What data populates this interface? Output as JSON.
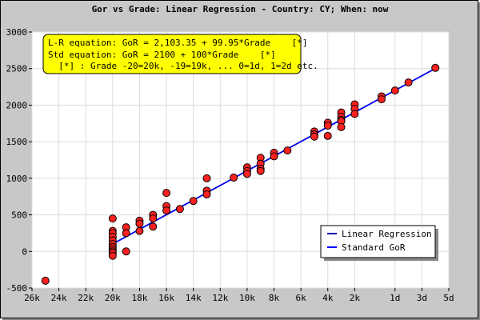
{
  "chart_data": {
    "type": "scatter",
    "title": "Gor vs Grade: Linear Regression - Country: CY; When: now",
    "xlabel": "",
    "ylabel": "",
    "xlim": [
      -26,
      5
    ],
    "ylim": [
      -500,
      3000
    ],
    "x_ticks": [
      {
        "value": -26,
        "label": "26k"
      },
      {
        "value": -24,
        "label": "24k"
      },
      {
        "value": -22,
        "label": "22k"
      },
      {
        "value": -20,
        "label": "20k"
      },
      {
        "value": -18,
        "label": "18k"
      },
      {
        "value": -16,
        "label": "16k"
      },
      {
        "value": -14,
        "label": "14k"
      },
      {
        "value": -12,
        "label": "12k"
      },
      {
        "value": -10,
        "label": "10k"
      },
      {
        "value": -8,
        "label": "8k"
      },
      {
        "value": -6,
        "label": "6k"
      },
      {
        "value": -4,
        "label": "4k"
      },
      {
        "value": -2,
        "label": "2k"
      },
      {
        "value": 1,
        "label": "1d"
      },
      {
        "value": 3,
        "label": "3d"
      },
      {
        "value": 5,
        "label": "5d"
      }
    ],
    "y_ticks": [
      -500,
      0,
      500,
      1000,
      1500,
      2000,
      2500,
      3000
    ],
    "grid": true,
    "annotation": {
      "line1": "L-R equation: GoR = 2,103.35 + 99.95*Grade    [*]",
      "line2": "Std equation: GoR = 2100 + 100*Grade    [*]",
      "line3": "  [*] : Grade -20=20k, -19=19k, ... 0=1d, 1=2d etc."
    },
    "legend": {
      "position": "bottom-right",
      "entries": [
        {
          "label": "Linear Regression",
          "color": "#0000aa"
        },
        {
          "label": "Standard GoR",
          "color": "#0000ff"
        }
      ]
    },
    "series": [
      {
        "name": "Linear Regression",
        "type": "line",
        "intercept": 2103.35,
        "slope": 99.95,
        "x_range": [
          -20,
          4
        ],
        "color": "#0000aa"
      },
      {
        "name": "Standard GoR",
        "type": "line",
        "intercept": 2100,
        "slope": 100,
        "x_range": [
          -20,
          4
        ],
        "color": "#0000ff"
      },
      {
        "type": "scatter",
        "color": "#ff2020",
        "points": [
          [
            -25,
            -400
          ],
          [
            -20,
            450
          ],
          [
            -20,
            280
          ],
          [
            -20,
            250
          ],
          [
            -20,
            200
          ],
          [
            -20,
            150
          ],
          [
            -20,
            100
          ],
          [
            -20,
            60
          ],
          [
            -20,
            30
          ],
          [
            -20,
            0
          ],
          [
            -20,
            -20
          ],
          [
            -20,
            -60
          ],
          [
            -19,
            330
          ],
          [
            -19,
            250
          ],
          [
            -19,
            0
          ],
          [
            -18,
            420
          ],
          [
            -18,
            380
          ],
          [
            -18,
            280
          ],
          [
            -17,
            500
          ],
          [
            -17,
            450
          ],
          [
            -17,
            340
          ],
          [
            -16,
            800
          ],
          [
            -16,
            620
          ],
          [
            -16,
            560
          ],
          [
            -15,
            580
          ],
          [
            -14,
            690
          ],
          [
            -13,
            1000
          ],
          [
            -13,
            830
          ],
          [
            -13,
            780
          ],
          [
            -11,
            1010
          ],
          [
            -10,
            1150
          ],
          [
            -10,
            1100
          ],
          [
            -10,
            1060
          ],
          [
            -9,
            1280
          ],
          [
            -9,
            1200
          ],
          [
            -9,
            1130
          ],
          [
            -9,
            1100
          ],
          [
            -8,
            1350
          ],
          [
            -8,
            1300
          ],
          [
            -7,
            1380
          ],
          [
            -5,
            1640
          ],
          [
            -5,
            1600
          ],
          [
            -5,
            1570
          ],
          [
            -4,
            1760
          ],
          [
            -4,
            1720
          ],
          [
            -4,
            1580
          ],
          [
            -3,
            1900
          ],
          [
            -3,
            1840
          ],
          [
            -3,
            1800
          ],
          [
            -3,
            1780
          ],
          [
            -3,
            1700
          ],
          [
            -2,
            2010
          ],
          [
            -2,
            1950
          ],
          [
            -2,
            1880
          ],
          [
            0,
            2120
          ],
          [
            0,
            2080
          ],
          [
            1,
            2200
          ],
          [
            2,
            2310
          ],
          [
            4,
            2510
          ]
        ]
      }
    ]
  }
}
